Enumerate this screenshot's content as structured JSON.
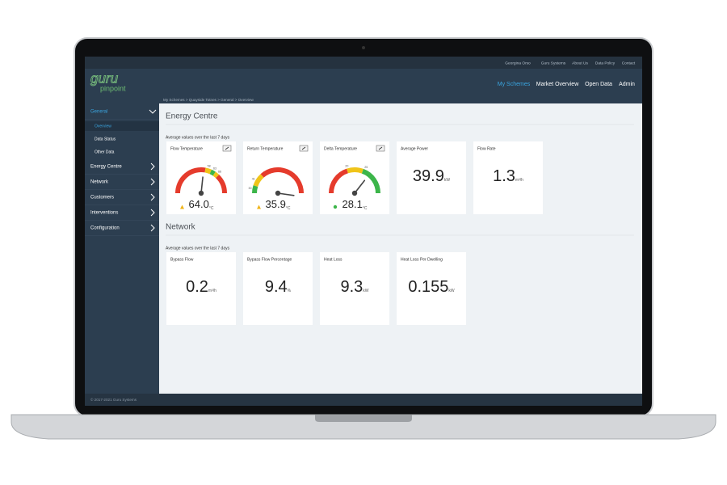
{
  "top_links": [
    "Georgina Orso",
    "Guru Systems",
    "About Us",
    "Data Policy",
    "Contact"
  ],
  "logo": {
    "primary": "guru",
    "secondary": "pinpoint"
  },
  "nav": [
    "My Schemes",
    "Market Overview",
    "Open Data",
    "Admin"
  ],
  "breadcrumb": "My Schemes > Quayside Totnes > General > Overview",
  "sidebar": [
    {
      "label": "General",
      "children": [
        "Overview",
        "Data Status",
        "Other Data"
      ]
    },
    {
      "label": "Energy Centre"
    },
    {
      "label": "Network"
    },
    {
      "label": "Customers"
    },
    {
      "label": "Interventions"
    },
    {
      "label": "Configuration"
    }
  ],
  "sections": [
    {
      "title": "Energy Centre",
      "subtitle": "Average values over the last 7 days",
      "cards": [
        {
          "title": "Flow Temperature",
          "value": "64.0",
          "unit": "°C",
          "gauge_labels": [
            "58",
            "63",
            "66"
          ]
        },
        {
          "title": "Return Temperature",
          "value": "35.9",
          "unit": "°C",
          "gauge_labels": [
            "41",
            "30"
          ]
        },
        {
          "title": "Delta Temperature",
          "value": "28.1",
          "unit": "°C",
          "gauge_labels": [
            "20",
            "25"
          ]
        },
        {
          "title": "Average Power",
          "value": "39.9",
          "unit": "kW"
        },
        {
          "title": "Flow Rate",
          "value": "1.3",
          "unit": "m³/h"
        }
      ]
    },
    {
      "title": "Network",
      "subtitle": "Average values over the last 7 days",
      "cards": [
        {
          "title": "Bypass Flow",
          "value": "0.2",
          "unit": "m³/h"
        },
        {
          "title": "Bypass Flow Percentage",
          "value": "9.4",
          "unit": "%"
        },
        {
          "title": "Heat Loss",
          "value": "9.3",
          "unit": "kW"
        },
        {
          "title": "Heat Loss Per Dwelling",
          "value": "0.155",
          "unit": "kW"
        }
      ]
    }
  ],
  "footer": "© 2017-2021 Guru Systems"
}
